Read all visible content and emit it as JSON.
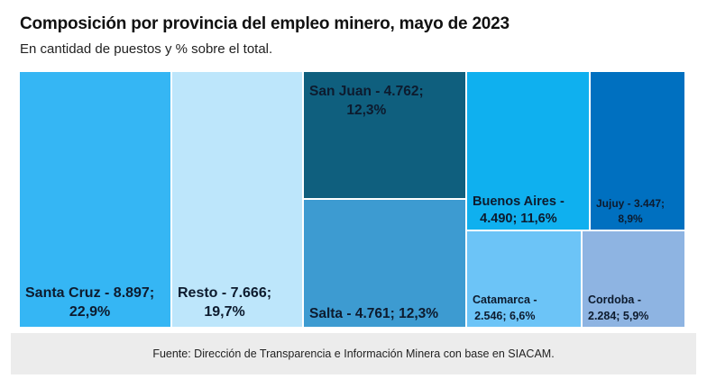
{
  "header": {
    "title": "Composición por provincia del empleo minero, mayo de 2023",
    "subtitle": "En cantidad de puestos y % sobre el total."
  },
  "footer": {
    "source": "Fuente: Dirección de Transparencia e Información Minera con base en SIACAM."
  },
  "chart_data": {
    "type": "treemap",
    "title": "Composición por provincia del empleo minero, mayo de 2023",
    "subtitle": "En cantidad de puestos y % sobre el total.",
    "items": [
      {
        "name": "Santa Cruz",
        "value": 8897,
        "percent": 22.9,
        "lines": [
          "Santa Cruz - 8.897;",
          "22,9%"
        ],
        "color": "#35b6f4",
        "textColor": "#0d1b2e"
      },
      {
        "name": "Resto",
        "value": 7666,
        "percent": 19.7,
        "lines": [
          "Resto - 7.666;",
          "19,7%"
        ],
        "color": "#bde6fb",
        "textColor": "#0d1b2e"
      },
      {
        "name": "San Juan",
        "value": 4762,
        "percent": 12.3,
        "lines": [
          "San Juan - 4.762;",
          "12,3%"
        ],
        "color": "#0f5f7e",
        "textColor": "#0d1b2e"
      },
      {
        "name": "Salta",
        "value": 4761,
        "percent": 12.3,
        "lines": [
          "Salta - 4.761; 12,3%"
        ],
        "color": "#3d9bd1",
        "textColor": "#0d1b2e"
      },
      {
        "name": "Buenos Aires",
        "value": 4490,
        "percent": 11.6,
        "lines": [
          "Buenos Aires -",
          "4.490; 11,6%"
        ],
        "color": "#0fb0ef",
        "textColor": "#0d1b2e"
      },
      {
        "name": "Jujuy",
        "value": 3447,
        "percent": 8.9,
        "lines": [
          "Jujuy - 3.447;",
          "8,9%"
        ],
        "color": "#0070c0",
        "textColor": "#0d1b2e"
      },
      {
        "name": "Catamarca",
        "value": 2546,
        "percent": 6.6,
        "lines": [
          "Catamarca -",
          "2.546; 6,6%"
        ],
        "color": "#6cc4f7",
        "textColor": "#0d1b2e"
      },
      {
        "name": "Cordoba",
        "value": 2284,
        "percent": 5.9,
        "lines": [
          "Cordoba -",
          "2.284; 5,9%"
        ],
        "color": "#8eb4e2",
        "textColor": "#0d1b2e"
      }
    ]
  }
}
